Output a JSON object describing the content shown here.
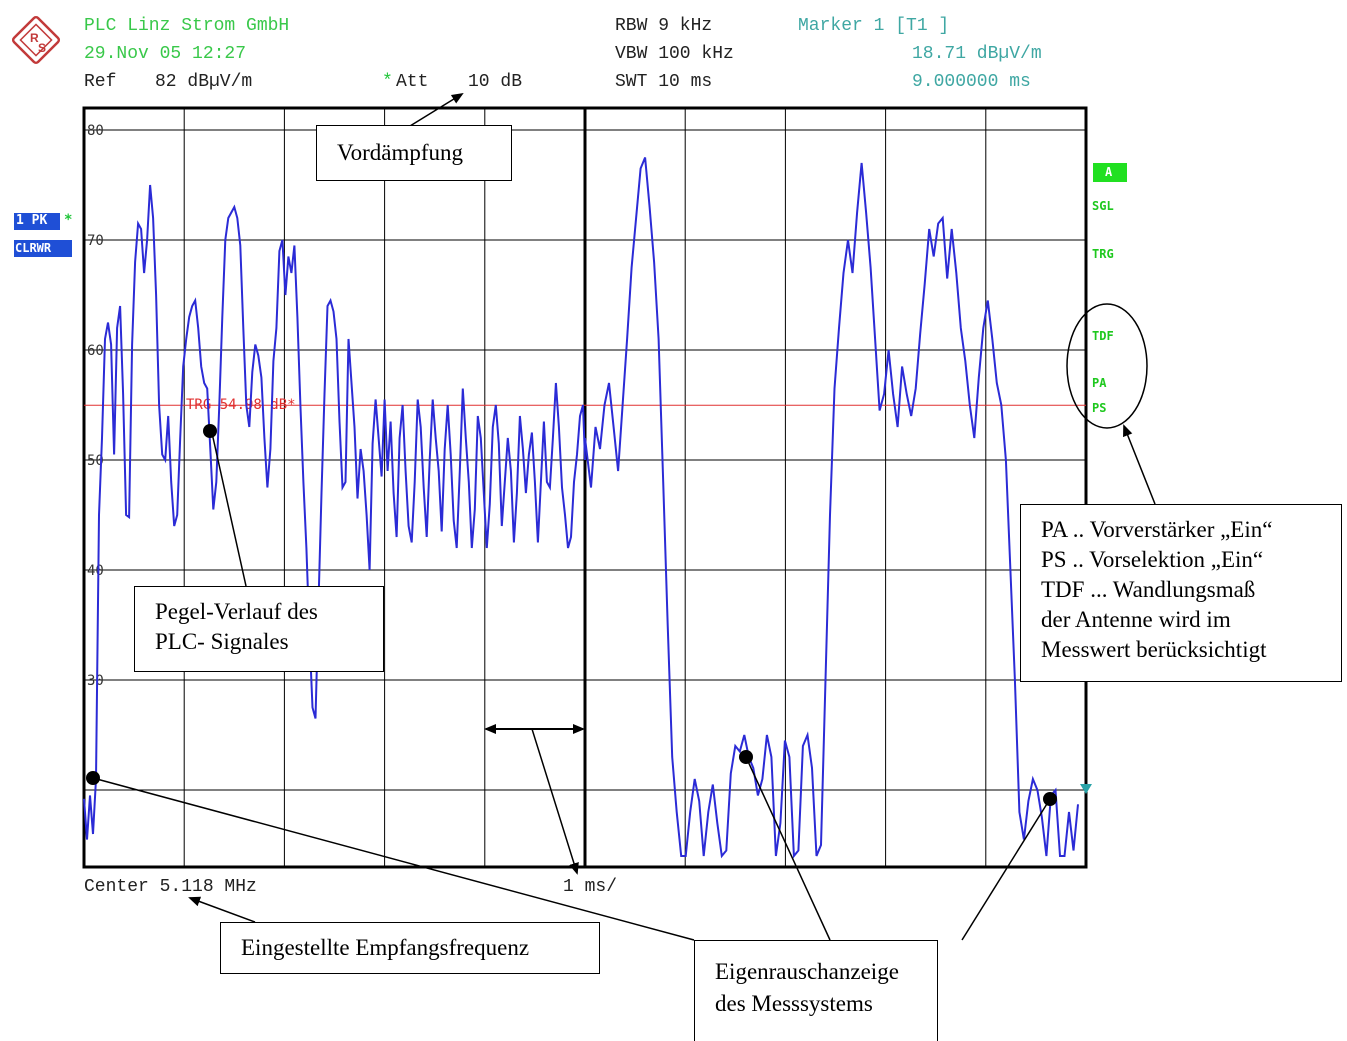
{
  "header": {
    "company": "PLC Linz Strom GmbH",
    "datetime": "29.Nov 05 12:27",
    "ref_label": "Ref",
    "ref_value": "82 dBµV/m",
    "att_star": "*",
    "att_label": "Att",
    "att_value": "10 dB",
    "rbw": "RBW 9 kHz",
    "vbw": "VBW 100 kHz",
    "swt": "SWT 10 ms",
    "marker_title": "Marker 1 [T1 ]",
    "marker_level": "18.71 dBµV/m",
    "marker_time": "9.000000 ms"
  },
  "footer": {
    "center": "Center 5.118 MHz",
    "span": "1 ms/"
  },
  "left_panel": {
    "trace_label": "1 PK",
    "trace_star": "*",
    "trace_mode": "CLRWR"
  },
  "right_panel": {
    "a": "A",
    "sgl": "SGL",
    "trg": "TRG",
    "tdf": "TDF",
    "pa": "PA",
    "ps": "PS"
  },
  "annotations": {
    "vordaempfung": "Vordämpfung",
    "pegel_line1": "Pegel-Verlauf des",
    "pegel_line2": "PLC- Signales",
    "info_line1": "PA .. Vorverstärker „Ein“",
    "info_line2": "PS .. Vorselektion „Ein“",
    "info_line3": "TDF ... Wandlungsmaß",
    "info_line4": "der Antenne wird  im",
    "info_line5": "Messwert berücksichtigt",
    "empfang": "Eingestellte Empfangsfrequenz",
    "eigen_line1": "Eigenrauschanzeige",
    "eigen_line2": "des Messsystems"
  },
  "colors": {
    "trace": "#2b2bd6",
    "trigger_line": "#e03030",
    "header_green": "#39c84a",
    "marker_teal": "#3fa7a3",
    "grid": "#000000",
    "status_green": "#1ec81e",
    "panel_blue": "#1f4fd6"
  },
  "chart_data": {
    "type": "line",
    "x_unit": "ms",
    "xlim": [
      0,
      10
    ],
    "ylim": [
      13,
      82
    ],
    "y_ticks": [
      30,
      40,
      50,
      60,
      70,
      80
    ],
    "y_tick_labels": [
      "30",
      "40",
      "50",
      "60",
      "70",
      "80"
    ],
    "trigger_level": 54.98,
    "trigger_label": "TRG 54.98 dB*",
    "marker": {
      "x": 9.0,
      "y": 18.71
    },
    "series": [
      {
        "points": [
          [
            0.0,
            19.2
          ],
          [
            0.06,
            15.5
          ],
          [
            0.12,
            19.5
          ],
          [
            0.18,
            16.0
          ],
          [
            0.24,
            21.0
          ],
          [
            0.3,
            45.0
          ],
          [
            0.36,
            52.0
          ],
          [
            0.42,
            61.0
          ],
          [
            0.48,
            62.5
          ],
          [
            0.54,
            60.5
          ],
          [
            0.6,
            50.5
          ],
          [
            0.66,
            62.0
          ],
          [
            0.72,
            64.0
          ],
          [
            0.78,
            56.0
          ],
          [
            0.84,
            45.0
          ],
          [
            0.9,
            44.8
          ],
          [
            0.96,
            60.5
          ],
          [
            1.02,
            68.0
          ],
          [
            1.08,
            71.5
          ],
          [
            1.14,
            71.0
          ],
          [
            1.2,
            67.0
          ],
          [
            1.26,
            70.0
          ],
          [
            1.32,
            75.0
          ],
          [
            1.38,
            72.0
          ],
          [
            1.44,
            65.0
          ],
          [
            1.5,
            55.0
          ],
          [
            1.56,
            50.5
          ],
          [
            1.62,
            50.0
          ],
          [
            1.68,
            54.0
          ],
          [
            1.74,
            48.0
          ],
          [
            1.8,
            44.0
          ],
          [
            1.86,
            45.0
          ],
          [
            1.92,
            52.0
          ],
          [
            1.98,
            58.5
          ],
          [
            2.04,
            61.0
          ],
          [
            2.1,
            63.0
          ],
          [
            2.16,
            64.0
          ],
          [
            2.22,
            64.5
          ],
          [
            2.28,
            62.0
          ],
          [
            2.34,
            58.5
          ],
          [
            2.4,
            57.0
          ],
          [
            2.46,
            56.5
          ],
          [
            2.52,
            51.0
          ],
          [
            2.58,
            45.5
          ],
          [
            2.64,
            48.0
          ],
          [
            2.7,
            55.0
          ],
          [
            2.76,
            63.0
          ],
          [
            2.82,
            70.0
          ],
          [
            2.88,
            72.0
          ],
          [
            2.94,
            72.5
          ],
          [
            3.0,
            73.0
          ],
          [
            3.06,
            72.0
          ],
          [
            3.12,
            69.5
          ],
          [
            3.18,
            62.0
          ],
          [
            3.24,
            55.0
          ],
          [
            3.3,
            53.0
          ],
          [
            3.36,
            58.0
          ],
          [
            3.42,
            60.5
          ],
          [
            3.48,
            59.5
          ],
          [
            3.54,
            57.5
          ],
          [
            3.6,
            52.0
          ],
          [
            3.66,
            47.5
          ],
          [
            3.72,
            51.0
          ],
          [
            3.78,
            59.0
          ],
          [
            3.84,
            62.0
          ],
          [
            3.9,
            69.0
          ],
          [
            3.96,
            70.0
          ],
          [
            4.02,
            65.0
          ],
          [
            4.08,
            68.5
          ],
          [
            4.14,
            67.0
          ],
          [
            4.2,
            69.5
          ],
          [
            4.26,
            63.0
          ],
          [
            4.32,
            55.0
          ],
          [
            4.38,
            48.0
          ],
          [
            4.44,
            42.0
          ],
          [
            4.5,
            34.0
          ],
          [
            4.56,
            27.5
          ],
          [
            4.62,
            26.5
          ],
          [
            4.68,
            37.0
          ],
          [
            4.74,
            47.0
          ],
          [
            4.8,
            56.0
          ],
          [
            4.86,
            64.0
          ],
          [
            4.92,
            64.5
          ],
          [
            4.98,
            63.5
          ],
          [
            5.04,
            61.0
          ],
          [
            5.1,
            53.5
          ],
          [
            5.16,
            47.5
          ],
          [
            5.22,
            48.0
          ],
          [
            5.28,
            61.0
          ],
          [
            5.34,
            57.0
          ],
          [
            5.4,
            53.0
          ],
          [
            5.46,
            46.5
          ],
          [
            5.52,
            51.0
          ],
          [
            5.58,
            49.0
          ],
          [
            5.64,
            45.0
          ],
          [
            5.7,
            40.0
          ],
          [
            5.76,
            51.5
          ],
          [
            5.82,
            55.5
          ],
          [
            5.88,
            52.0
          ],
          [
            5.94,
            48.5
          ],
          [
            6.0,
            55.5
          ],
          [
            6.06,
            49.0
          ],
          [
            6.12,
            53.5
          ],
          [
            6.18,
            47.0
          ],
          [
            6.24,
            43.0
          ],
          [
            6.3,
            52.0
          ],
          [
            6.36,
            55.0
          ],
          [
            6.42,
            49.0
          ],
          [
            6.48,
            44.0
          ],
          [
            6.54,
            42.5
          ],
          [
            6.6,
            48.0
          ],
          [
            6.66,
            55.5
          ],
          [
            6.72,
            53.0
          ],
          [
            6.78,
            47.5
          ],
          [
            6.84,
            43.0
          ],
          [
            6.9,
            50.0
          ],
          [
            6.96,
            55.5
          ],
          [
            7.02,
            52.0
          ],
          [
            7.08,
            49.0
          ],
          [
            7.14,
            43.5
          ],
          [
            7.2,
            51.0
          ],
          [
            7.26,
            55.0
          ],
          [
            7.32,
            50.5
          ],
          [
            7.38,
            44.5
          ],
          [
            7.44,
            42.0
          ],
          [
            7.5,
            49.0
          ],
          [
            7.56,
            56.5
          ],
          [
            7.62,
            52.0
          ],
          [
            7.68,
            48.0
          ],
          [
            7.74,
            42.0
          ],
          [
            7.8,
            45.5
          ],
          [
            7.86,
            54.0
          ],
          [
            7.92,
            52.0
          ],
          [
            7.98,
            47.0
          ],
          [
            8.04,
            42.0
          ],
          [
            8.1,
            46.0
          ],
          [
            8.16,
            53.0
          ],
          [
            8.22,
            55.0
          ],
          [
            8.28,
            51.5
          ],
          [
            8.34,
            44.0
          ],
          [
            8.4,
            48.0
          ],
          [
            8.46,
            52.0
          ],
          [
            8.52,
            49.0
          ],
          [
            8.58,
            42.5
          ],
          [
            8.64,
            47.0
          ],
          [
            8.7,
            54.0
          ],
          [
            8.76,
            51.0
          ],
          [
            8.82,
            47.0
          ],
          [
            8.88,
            50.5
          ],
          [
            8.94,
            52.5
          ],
          [
            9.0,
            48.0
          ],
          [
            9.06,
            42.5
          ],
          [
            9.12,
            48.0
          ],
          [
            9.18,
            53.5
          ],
          [
            9.24,
            48.0
          ],
          [
            9.3,
            47.5
          ],
          [
            9.36,
            52.0
          ],
          [
            9.42,
            57.0
          ],
          [
            9.48,
            53.0
          ],
          [
            9.54,
            47.5
          ],
          [
            9.6,
            45.0
          ],
          [
            9.66,
            42.0
          ],
          [
            9.72,
            43.0
          ],
          [
            9.78,
            48.0
          ],
          [
            9.84,
            50.5
          ],
          [
            9.9,
            54.0
          ],
          [
            9.96,
            55.0
          ],
          [
            10.0,
            50.0
          ]
        ],
        "color": "#2b2bd6"
      }
    ],
    "right_section": {
      "points": [
        [
          0.0,
          52.0
        ],
        [
          0.08,
          47.5
        ],
        [
          0.14,
          53.0
        ],
        [
          0.2,
          51.0
        ],
        [
          0.26,
          55.0
        ],
        [
          0.32,
          57.0
        ],
        [
          0.38,
          53.0
        ],
        [
          0.44,
          49.0
        ],
        [
          0.5,
          55.0
        ],
        [
          0.56,
          61.0
        ],
        [
          0.62,
          67.5
        ],
        [
          0.68,
          72.0
        ],
        [
          0.74,
          76.5
        ],
        [
          0.8,
          77.5
        ],
        [
          0.86,
          73.0
        ],
        [
          0.92,
          68.0
        ],
        [
          0.98,
          61.0
        ],
        [
          1.04,
          48.0
        ],
        [
          1.1,
          35.0
        ],
        [
          1.16,
          23.0
        ],
        [
          1.22,
          18.0
        ],
        [
          1.28,
          14.0
        ],
        [
          1.34,
          14.0
        ],
        [
          1.4,
          18.0
        ],
        [
          1.46,
          21.0
        ],
        [
          1.52,
          19.0
        ],
        [
          1.58,
          14.0
        ],
        [
          1.64,
          18.0
        ],
        [
          1.7,
          20.5
        ],
        [
          1.76,
          17.0
        ],
        [
          1.82,
          14.0
        ],
        [
          1.88,
          14.5
        ],
        [
          1.94,
          21.5
        ],
        [
          2.0,
          24.0
        ],
        [
          2.06,
          23.5
        ],
        [
          2.12,
          25.0
        ],
        [
          2.18,
          23.0
        ],
        [
          2.24,
          22.0
        ],
        [
          2.3,
          19.5
        ],
        [
          2.36,
          21.0
        ],
        [
          2.42,
          25.0
        ],
        [
          2.48,
          23.0
        ],
        [
          2.54,
          14.0
        ],
        [
          2.6,
          17.0
        ],
        [
          2.66,
          24.5
        ],
        [
          2.72,
          23.0
        ],
        [
          2.78,
          14.0
        ],
        [
          2.84,
          14.5
        ],
        [
          2.9,
          24.0
        ],
        [
          2.96,
          25.0
        ],
        [
          3.02,
          22.0
        ],
        [
          3.08,
          14.0
        ],
        [
          3.14,
          15.0
        ],
        [
          3.2,
          30.0
        ],
        [
          3.26,
          45.0
        ],
        [
          3.32,
          56.5
        ],
        [
          3.38,
          62.0
        ],
        [
          3.44,
          67.0
        ],
        [
          3.5,
          70.0
        ],
        [
          3.56,
          67.0
        ],
        [
          3.62,
          72.5
        ],
        [
          3.68,
          77.0
        ],
        [
          3.74,
          72.5
        ],
        [
          3.8,
          67.5
        ],
        [
          3.86,
          61.0
        ],
        [
          3.92,
          54.5
        ],
        [
          3.98,
          56.0
        ],
        [
          4.04,
          60.0
        ],
        [
          4.1,
          56.0
        ],
        [
          4.16,
          53.0
        ],
        [
          4.22,
          58.5
        ],
        [
          4.28,
          56.0
        ],
        [
          4.34,
          54.0
        ],
        [
          4.4,
          56.5
        ],
        [
          4.46,
          61.5
        ],
        [
          4.52,
          66.0
        ],
        [
          4.58,
          71.0
        ],
        [
          4.64,
          68.5
        ],
        [
          4.7,
          71.5
        ],
        [
          4.76,
          72.0
        ],
        [
          4.82,
          66.5
        ],
        [
          4.88,
          71.0
        ],
        [
          4.94,
          67.0
        ],
        [
          5.0,
          62.0
        ],
        [
          5.06,
          59.0
        ],
        [
          5.12,
          55.0
        ],
        [
          5.18,
          52.0
        ],
        [
          5.24,
          57.5
        ],
        [
          5.3,
          62.0
        ],
        [
          5.36,
          64.5
        ],
        [
          5.42,
          61.0
        ],
        [
          5.48,
          57.0
        ],
        [
          5.54,
          55.0
        ],
        [
          5.6,
          50.0
        ],
        [
          5.66,
          40.0
        ],
        [
          5.72,
          30.0
        ],
        [
          5.78,
          18.0
        ],
        [
          5.84,
          15.5
        ],
        [
          5.9,
          19.0
        ],
        [
          5.96,
          21.0
        ],
        [
          6.02,
          20.0
        ],
        [
          6.08,
          17.5
        ],
        [
          6.14,
          14.0
        ],
        [
          6.2,
          19.5
        ],
        [
          6.26,
          20.0
        ],
        [
          6.32,
          14.0
        ],
        [
          6.38,
          14.0
        ],
        [
          6.44,
          18.0
        ],
        [
          6.5,
          14.5
        ],
        [
          6.56,
          18.7
        ]
      ]
    }
  }
}
